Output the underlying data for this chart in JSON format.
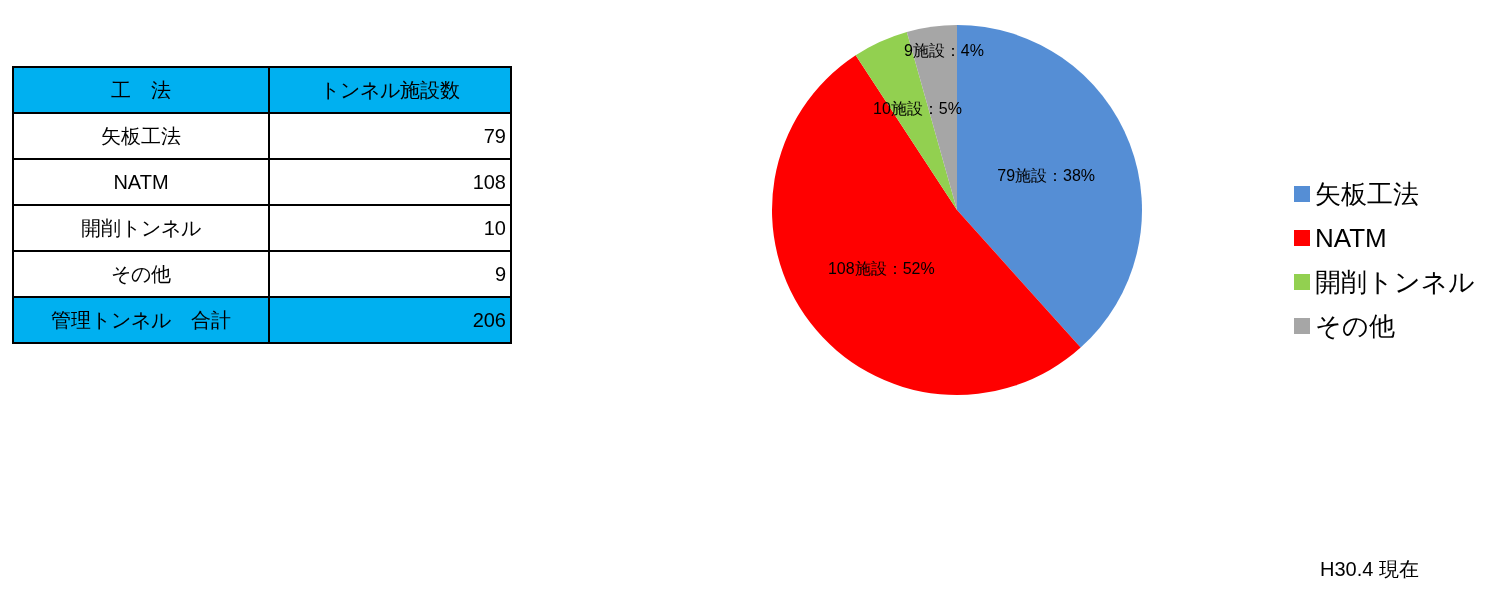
{
  "chart_data": [
    {
      "type": "other",
      "xlabel": "工　法",
      "ylabel": "トンネル施設数",
      "categories": [
        "矢板工法",
        "NATM",
        "開削トンネル",
        "その他"
      ],
      "values": [
        79,
        108,
        10,
        9
      ],
      "data_labels": true,
      "annotations": [
        "管理トンネル　合計",
        "206"
      ]
    },
    {
      "type": "pie",
      "categories": [
        "矢板工法",
        "NATM",
        "開削トンネル",
        "その他"
      ],
      "values": [
        79,
        108,
        10,
        9
      ],
      "colors": [
        "#558ed5",
        "#ff0000",
        "#92d050",
        "#a6a6a6"
      ],
      "value_labels": [
        "79施設：38%",
        "108施設：52%",
        "10施設：5%",
        "9施設：4%"
      ],
      "legend": "right",
      "annotations": [
        "H30.4 現在"
      ]
    }
  ]
}
